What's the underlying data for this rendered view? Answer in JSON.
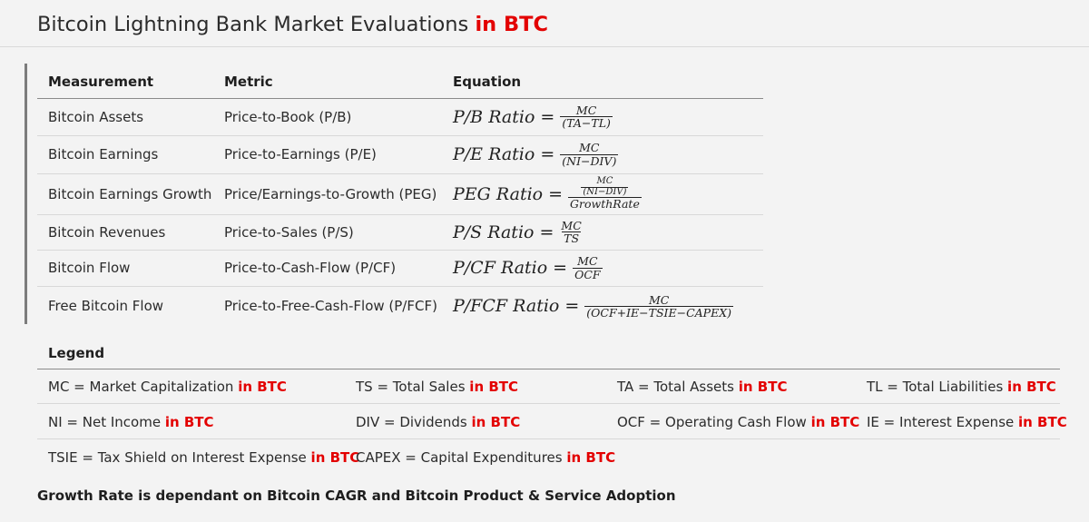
{
  "title": {
    "main": "Bitcoin Lightning Bank Market Evaluations",
    "accent": "in BTC"
  },
  "colors": {
    "accent": "#e30000",
    "background": "#f3f3f3"
  },
  "table": {
    "headers": [
      "Measurement",
      "Metric",
      "Equation"
    ],
    "rows": [
      {
        "measurement": "Bitcoin Assets",
        "metric": "Price-to-Book (P/B)",
        "label": "P/B Ratio",
        "num": "MC",
        "den": "(TA−TL)"
      },
      {
        "measurement": "Bitcoin Earnings",
        "metric": "Price-to-Earnings (P/E)",
        "label": "P/E Ratio",
        "num": "MC",
        "den": "(NI−DIV)"
      },
      {
        "measurement": "Bitcoin Earnings Growth",
        "metric": "Price/Earnings-to-Growth (PEG)",
        "label": "PEG Ratio",
        "num_num": "MC",
        "num_den": "(NI−DIV)",
        "den": "GrowthRate"
      },
      {
        "measurement": "Bitcoin Revenues",
        "metric": "Price-to-Sales (P/S)",
        "label": "P/S Ratio",
        "num": "MC",
        "den": "TS"
      },
      {
        "measurement": "Bitcoin Flow",
        "metric": "Price-to-Cash-Flow (P/CF)",
        "label": "P/CF Ratio",
        "num": "MC",
        "den": "OCF"
      },
      {
        "measurement": "Free Bitcoin Flow",
        "metric": "Price-to-Free-Cash-Flow (P/FCF)",
        "label": "P/FCF Ratio",
        "num": "MC",
        "den": "(OCF+IE−TSIE−CAPEX)"
      }
    ]
  },
  "eq_sign": "=",
  "legend": {
    "title": "Legend",
    "accent": "in BTC",
    "items": [
      "MC = Market Capitalization",
      "TS = Total Sales",
      "TA = Total Assets",
      "TL = Total Liabilities",
      "NI = Net Income",
      "DIV = Dividends",
      "OCF = Operating Cash Flow",
      "IE = Interest Expense",
      "TSIE = Tax Shield on Interest Expense",
      "CAPEX = Capital Expenditures"
    ]
  },
  "footer": "Growth Rate is dependant on Bitcoin CAGR and Bitcoin Product & Service Adoption"
}
